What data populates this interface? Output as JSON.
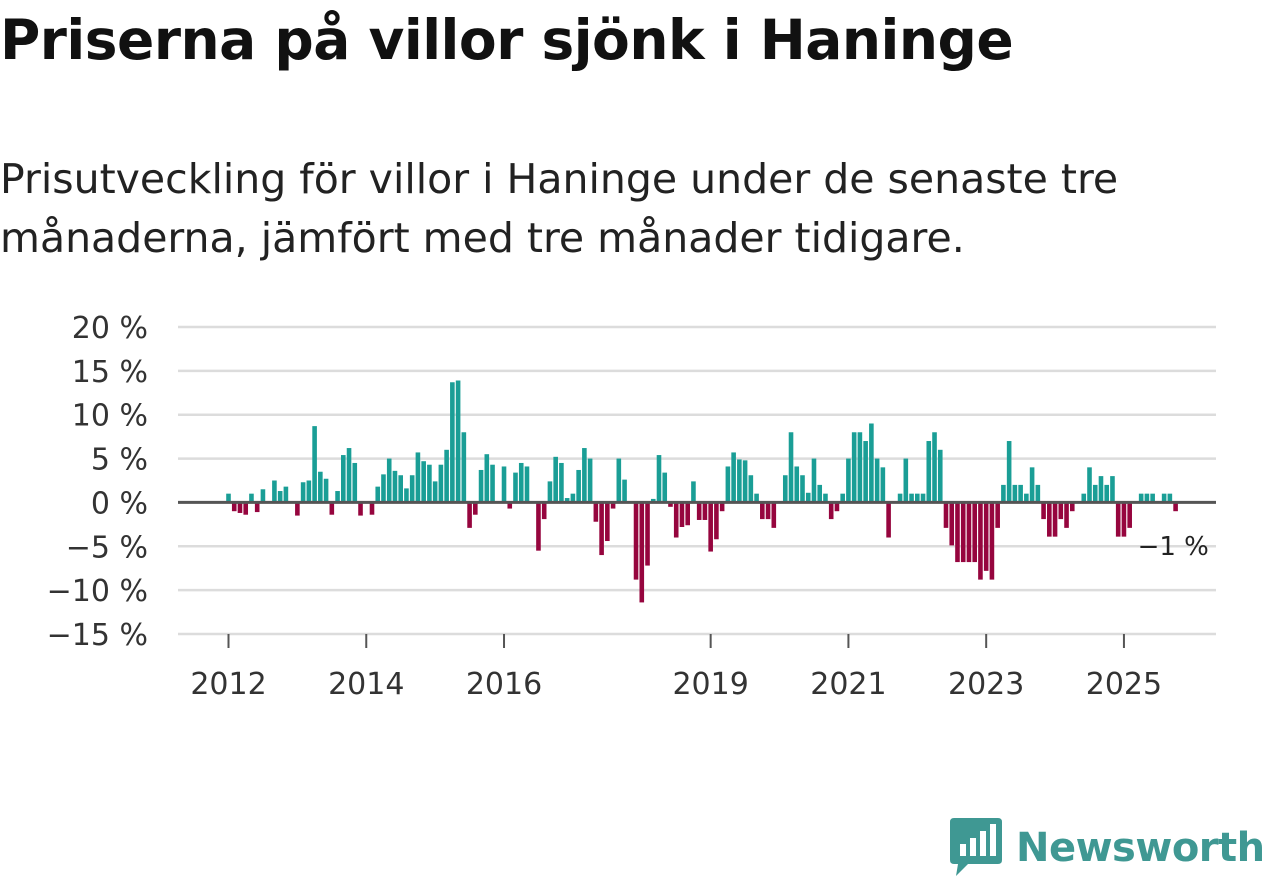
{
  "header": {
    "title": "Priserna på villor sjönk i Haninge",
    "subtitle": "Prisutveckling för villor i Haninge under de senaste tre månaderna, jämfört med tre månader tidigare."
  },
  "colors": {
    "positive": "#1a9e96",
    "negative": "#96053e",
    "grid": "#dcdcdc",
    "zero": "#555555",
    "brand": "#3f9893"
  },
  "branding": {
    "name": "Newsworthy",
    "logo_icon": "newsworthy-chart-bubble-icon"
  },
  "chart_data": {
    "type": "bar",
    "title": "Priserna på villor sjönk i Haninge",
    "subtitle": "Prisutveckling för villor i Haninge under de senaste tre månaderna, jämfört med tre månader tidigare.",
    "xlabel": "",
    "ylabel": "",
    "y_unit": "%",
    "ylim": [
      -15,
      20
    ],
    "y_ticks": [
      20,
      15,
      10,
      5,
      0,
      -5,
      -10,
      -15
    ],
    "y_tick_labels": [
      "20 %",
      "15 %",
      "10 %",
      "5 %",
      "0 %",
      "−5 %",
      "−10 %",
      "−15 %"
    ],
    "x_ticks": [
      {
        "label": "2012",
        "index": 0
      },
      {
        "label": "2014",
        "index": 24
      },
      {
        "label": "2016",
        "index": 48
      },
      {
        "label": "2019",
        "index": 84
      },
      {
        "label": "2021",
        "index": 108
      },
      {
        "label": "2023",
        "index": 132
      },
      {
        "label": "2025",
        "index": 156
      }
    ],
    "start": "2012-01",
    "values": [
      1,
      -1,
      -1.2,
      -1.4,
      1,
      -1.1,
      1.5,
      0,
      2.5,
      1.3,
      1.8,
      0,
      -1.5,
      2.3,
      2.5,
      8.7,
      3.5,
      2.7,
      -1.4,
      1.3,
      5.4,
      6.2,
      4.5,
      -1.5,
      0,
      -1.4,
      1.8,
      3.2,
      5,
      3.6,
      3.1,
      1.6,
      3.1,
      5.7,
      4.7,
      4.3,
      2.4,
      4.3,
      6,
      13.7,
      13.9,
      8,
      -2.9,
      -1.4,
      3.7,
      5.5,
      4.3,
      0,
      4.1,
      -0.7,
      3.4,
      4.5,
      4.1,
      0,
      -5.5,
      -1.9,
      2.4,
      5.2,
      4.5,
      0.5,
      1,
      3.7,
      6.2,
      5,
      -2.2,
      -6,
      -4.4,
      -0.7,
      5,
      2.6,
      0,
      -8.8,
      -11.4,
      -7.2,
      0.4,
      5.4,
      3.4,
      -0.5,
      -4,
      -2.8,
      -2.6,
      2.4,
      -2,
      -2,
      -5.6,
      -4.2,
      -1,
      4.1,
      5.7,
      4.9,
      4.8,
      3.1,
      1,
      -1.9,
      -1.9,
      -2.9,
      0,
      3.1,
      8,
      4.1,
      3.1,
      1.1,
      5,
      2,
      1,
      -1.9,
      -1,
      1,
      5,
      8,
      8,
      7,
      9,
      5,
      4,
      -4,
      0,
      1,
      5,
      1,
      1,
      1,
      7,
      8,
      6,
      -2.9,
      -4.9,
      -6.8,
      -6.8,
      -6.8,
      -6.8,
      -8.8,
      -7.8,
      -8.8,
      -2.9,
      2,
      7,
      2,
      2,
      1,
      4,
      2,
      -1.9,
      -3.9,
      -3.9,
      -1.9,
      -2.9,
      -1,
      0,
      1,
      4,
      2,
      3,
      2,
      3,
      -3.9,
      -3.9,
      -2.9,
      0,
      1,
      1,
      1,
      0,
      1,
      1,
      -1
    ],
    "end_label": "−1 %"
  }
}
